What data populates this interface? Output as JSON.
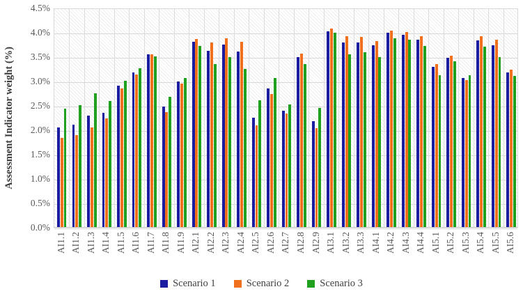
{
  "chart_data": {
    "type": "bar",
    "title": "",
    "xlabel": "",
    "ylabel": "Assessment Indicator weight (%)",
    "ylim": [
      0,
      4.5
    ],
    "ytick_labels": [
      "4.5%",
      "4.0%",
      "3.5%",
      "3.0%",
      "2.5%",
      "2.0%",
      "1.5%",
      "1.0%",
      "0.5%",
      "0.0%"
    ],
    "ytick_values": [
      4.5,
      4.0,
      3.5,
      3.0,
      2.5,
      2.0,
      1.5,
      1.0,
      0.5,
      0.0
    ],
    "grid": "both",
    "legend_position": "bottom",
    "categories": [
      "AI1.1",
      "AI1.2",
      "AI1.3",
      "AI1.4",
      "AI1.5",
      "AI1.6",
      "AI1.7",
      "AI1.8",
      "AI1.9",
      "AI2.1",
      "AI2.2",
      "AI2.3",
      "AI2.4",
      "AI2.5",
      "AI2.6",
      "AI2.7",
      "AI2.8",
      "AI2.9",
      "AI3.1",
      "AI3.2",
      "AI3.3",
      "AI4.1",
      "AI4.2",
      "AI4.3",
      "AI4.4",
      "AI5.1",
      "AI5.2",
      "AI5.3",
      "AI5.4",
      "AI5.5",
      "AI5.6"
    ],
    "series": [
      {
        "name": "Scenario 1",
        "color": "#1c1ca0",
        "values": [
          2.04,
          2.1,
          2.29,
          2.35,
          2.9,
          3.17,
          3.54,
          2.47,
          2.98,
          3.8,
          3.62,
          3.74,
          3.6,
          2.25,
          2.84,
          2.39,
          3.48,
          2.17,
          4.02,
          3.79,
          3.79,
          3.73,
          3.98,
          3.95,
          3.85,
          3.28,
          3.47,
          3.06,
          3.83,
          3.73,
          3.17
        ]
      },
      {
        "name": "Scenario 2",
        "color": "#f0701e",
        "values": [
          1.83,
          1.88,
          2.05,
          2.23,
          2.84,
          3.13,
          3.55,
          2.36,
          2.95,
          3.86,
          3.78,
          3.87,
          3.8,
          2.08,
          2.73,
          2.33,
          3.56,
          2.03,
          4.07,
          3.92,
          3.9,
          3.82,
          4.03,
          4.0,
          3.92,
          3.34,
          3.51,
          3.02,
          3.91,
          3.85,
          3.23
        ]
      },
      {
        "name": "Scenario 3",
        "color": "#1fa11f",
        "values": [
          2.43,
          2.5,
          2.74,
          2.58,
          3.0,
          3.26,
          3.5,
          2.67,
          3.06,
          3.71,
          3.35,
          3.49,
          3.24,
          2.6,
          3.06,
          2.51,
          3.35,
          2.45,
          3.98,
          3.55,
          3.59,
          3.49,
          3.87,
          3.84,
          3.71,
          3.11,
          3.4,
          3.12,
          3.7,
          3.49,
          3.1
        ]
      }
    ],
    "colors": {
      "grid": "#d8d8d8",
      "axis_line": "#bfbfbf",
      "tick_text": "#595959"
    }
  }
}
